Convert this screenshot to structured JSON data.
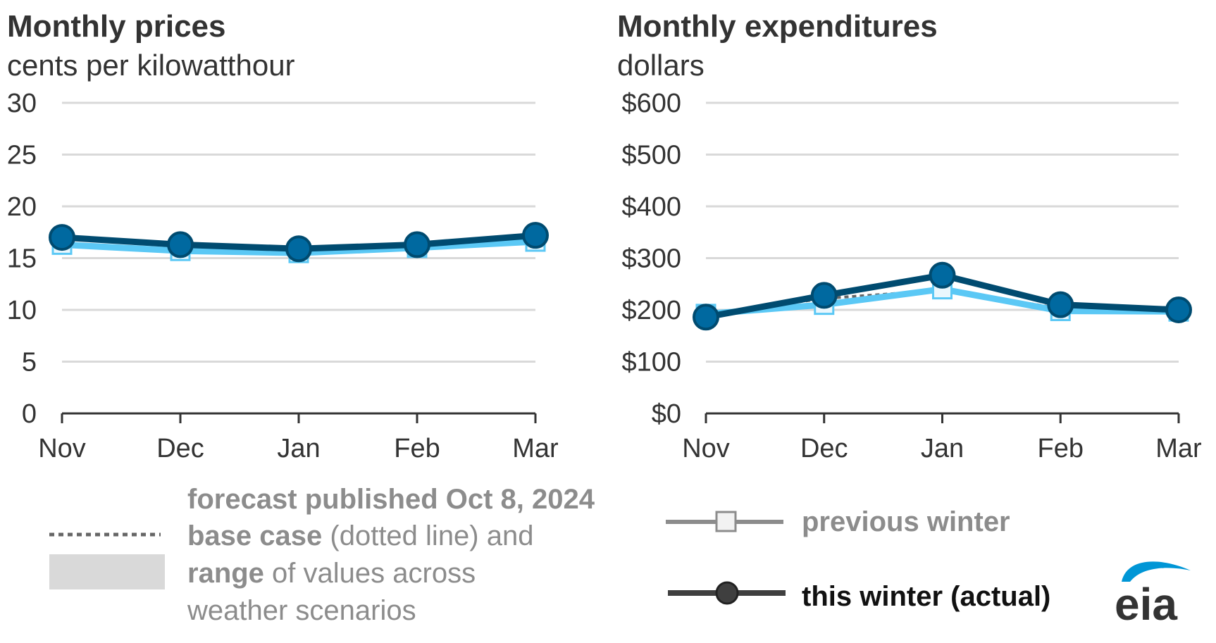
{
  "chart_data": [
    {
      "type": "line",
      "title": "Monthly prices",
      "subtitle": "cents per kilowatthour",
      "categories": [
        "Nov",
        "Dec",
        "Jan",
        "Feb",
        "Mar"
      ],
      "ylim": [
        0,
        30
      ],
      "yticks": [
        "0",
        "5",
        "10",
        "15",
        "20",
        "25",
        "30"
      ],
      "ytick_values": [
        0,
        5,
        10,
        15,
        20,
        25,
        30
      ],
      "grid": true,
      "series": [
        {
          "name": "previous winter",
          "values": [
            16.3,
            15.7,
            15.5,
            16.0,
            16.6
          ],
          "color": "#5bc8f5"
        },
        {
          "name": "this winter (actual)",
          "values": [
            17.0,
            16.3,
            15.9,
            16.3,
            17.2
          ],
          "color": "#004b70"
        }
      ]
    },
    {
      "type": "line",
      "title": "Monthly expenditures",
      "subtitle": "dollars",
      "categories": [
        "Nov",
        "Dec",
        "Jan",
        "Feb",
        "Mar"
      ],
      "ylim": [
        0,
        600
      ],
      "yticks": [
        "$0",
        "$100",
        "$200",
        "$300",
        "$400",
        "$500",
        "$600"
      ],
      "ytick_values": [
        0,
        100,
        200,
        300,
        400,
        500,
        600
      ],
      "grid": true,
      "series": [
        {
          "name": "base case",
          "values": [
            192,
            222,
            238,
            203,
            197
          ],
          "color": "#666666"
        },
        {
          "name": "previous winter",
          "values": [
            192,
            210,
            240,
            198,
            197
          ],
          "color": "#5bc8f5"
        },
        {
          "name": "this winter (actual)",
          "values": [
            186,
            228,
            267,
            210,
            200
          ],
          "color": "#004b70"
        }
      ]
    }
  ],
  "legend": {
    "forecast_title": "forecast published Oct 8, 2024",
    "base_case_bold": "base case",
    "base_case_rest": " (dotted line) and",
    "range_bold": "range",
    "range_rest": " of values across",
    "range_line2": "weather scenarios",
    "previous_winter": "previous winter",
    "this_winter": "this winter (actual)"
  },
  "logo": {
    "text": "eia",
    "color": "#0096d6"
  }
}
